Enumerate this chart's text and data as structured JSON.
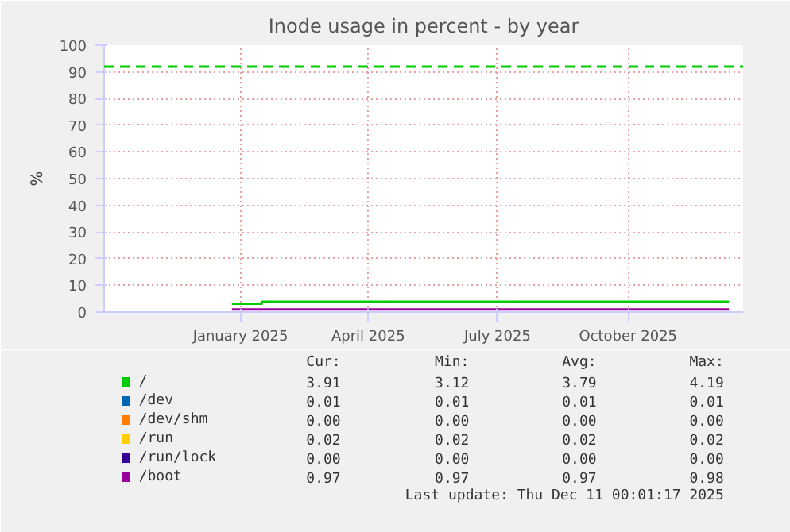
{
  "chart_data": {
    "type": "line",
    "title": "Inode usage in percent - by year",
    "ylabel": "%",
    "xlim": [
      "2024-09-27",
      "2025-12-21"
    ],
    "xticks": [
      {
        "value": "2025-01-01",
        "label": "January 2025"
      },
      {
        "value": "2025-04-01",
        "label": "April 2025"
      },
      {
        "value": "2025-07-01",
        "label": "July 2025"
      },
      {
        "value": "2025-10-01",
        "label": "October 2025"
      }
    ],
    "ylim": [
      0,
      100
    ],
    "yticks": [
      0,
      10,
      20,
      30,
      40,
      50,
      60,
      70,
      80,
      90,
      100
    ],
    "grid": true,
    "legend": "bottom",
    "marker": "none",
    "line_style": "solid",
    "series": [
      {
        "name": "/",
        "color": "#00cc00",
        "x": [
          "2024-12-26",
          "2025-01-16",
          "2025-01-16",
          "2025-12-11"
        ],
        "values": [
          3.1,
          3.1,
          3.9,
          3.9
        ]
      },
      {
        "name": "/dev",
        "color": "#0066b3"
      },
      {
        "name": "/dev/shm",
        "color": "#ff8000"
      },
      {
        "name": "/run",
        "color": "#ffcc00"
      },
      {
        "name": "/run/lock",
        "color": "#330099"
      },
      {
        "name": "/boot",
        "color": "#990099",
        "x": [
          "2024-12-26",
          "2025-12-11"
        ],
        "values": [
          1,
          1
        ]
      }
    ],
    "ref_lines": [
      {
        "axis": "y",
        "value": 92,
        "color": "#00cc00",
        "line_style": "dashed"
      }
    ],
    "annotations": [
      "Cur:",
      "Min:",
      "Avg:",
      "Max:",
      "3.91",
      "3.12",
      "3.79",
      "4.19",
      "0.01",
      "0.01",
      "0.01",
      "0.01",
      "0.00",
      "0.00",
      "0.00",
      "0.00",
      "0.02",
      "0.02",
      "0.02",
      "0.02",
      "0.00",
      "0.00",
      "0.00",
      "0.00",
      "0.97",
      "0.97",
      "0.97",
      "0.98",
      "Last update: Thu Dec 11 00:01:17 2025"
    ]
  }
}
